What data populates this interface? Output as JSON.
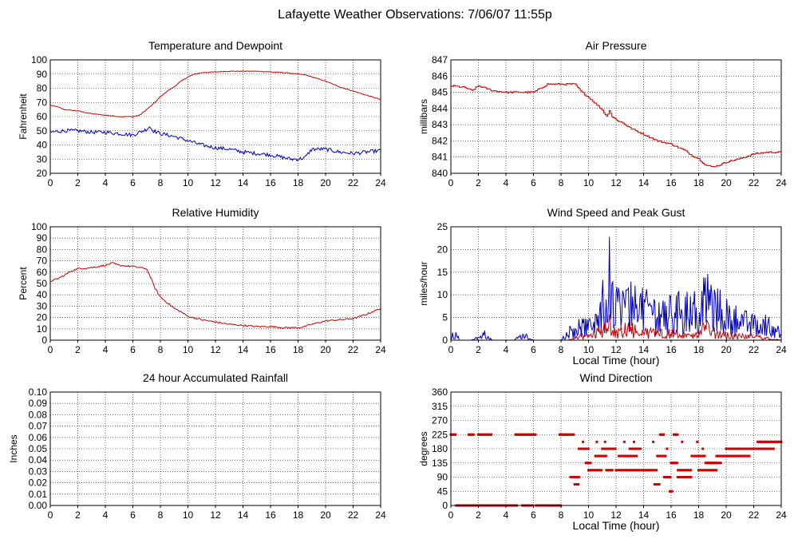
{
  "page_title": "Lafayette Weather Observations: 7/06/07 11:55p",
  "colors": {
    "red": "#cc0000",
    "blue": "#0000bb",
    "grid": "#000000",
    "frame": "#000000"
  },
  "chart_data": [
    {
      "id": "temp",
      "type": "line",
      "title": "Temperature and Dewpoint",
      "ylabel": "Fahrenheit",
      "xlabel": "",
      "xlim": [
        0,
        24
      ],
      "ylim": [
        20,
        100
      ],
      "xticks": [
        0,
        2,
        4,
        6,
        8,
        10,
        12,
        14,
        16,
        18,
        20,
        22,
        24
      ],
      "yticks": [
        20,
        30,
        40,
        50,
        60,
        70,
        80,
        90,
        100
      ],
      "series": [
        {
          "color": "red",
          "noise": 0.25,
          "x": [
            0,
            0.5,
            1,
            2,
            3,
            4,
            5,
            6,
            6.5,
            7,
            7.5,
            8,
            8.5,
            9,
            9.5,
            10,
            10.5,
            11,
            12,
            13,
            14,
            15,
            16,
            17,
            18,
            18.5,
            19,
            20,
            21,
            22,
            23,
            24
          ],
          "y": [
            68,
            67,
            65,
            64,
            62,
            61,
            60,
            60,
            61,
            65,
            69,
            74,
            78,
            81,
            85,
            88,
            90,
            91,
            91.5,
            92,
            92,
            92,
            91.5,
            91,
            90,
            89.5,
            88,
            85,
            81,
            78,
            75,
            72
          ]
        },
        {
          "color": "blue",
          "noise": 1.3,
          "x": [
            0,
            1,
            2,
            3,
            4,
            5,
            6,
            6.5,
            7,
            7.2,
            7.5,
            8,
            9,
            10,
            11,
            12,
            13,
            14,
            15,
            16,
            17,
            17.5,
            18,
            18.5,
            19,
            20,
            21,
            22,
            23,
            24
          ],
          "y": [
            49,
            50,
            50,
            49,
            49,
            48,
            47,
            49,
            51,
            53,
            50,
            48,
            46,
            43,
            40,
            38,
            37,
            35,
            34,
            33,
            31,
            30,
            30,
            31,
            37,
            37,
            35,
            34,
            35,
            36
          ]
        }
      ]
    },
    {
      "id": "pressure",
      "type": "line",
      "title": "Air Pressure",
      "ylabel": "millibars",
      "xlabel": "",
      "xlim": [
        0,
        24
      ],
      "ylim": [
        840,
        847
      ],
      "xticks": [
        0,
        2,
        4,
        6,
        8,
        10,
        12,
        14,
        16,
        18,
        20,
        22,
        24
      ],
      "yticks": [
        840,
        841,
        842,
        843,
        844,
        845,
        846,
        847
      ],
      "series": [
        {
          "color": "red",
          "step": 0.1,
          "noise": 0.05,
          "x": [
            0,
            1,
            1.5,
            2,
            3,
            4,
            6,
            7,
            8,
            9,
            9.5,
            10,
            10.5,
            11,
            11.3,
            11.5,
            11.7,
            12,
            12.5,
            13,
            14,
            15,
            16,
            17,
            17.5,
            18,
            18.5,
            19,
            19.5,
            20,
            21,
            22,
            23,
            24
          ],
          "y": [
            845.4,
            845.3,
            845.1,
            845.4,
            845.1,
            845.0,
            845.0,
            845.5,
            845.5,
            845.5,
            845.0,
            844.7,
            844.3,
            843.9,
            843.5,
            843.9,
            843.5,
            843.3,
            843.1,
            842.8,
            842.4,
            842.0,
            841.8,
            841.4,
            841.1,
            840.9,
            840.5,
            840.4,
            840.5,
            840.7,
            840.9,
            841.2,
            841.3,
            841.3
          ]
        }
      ]
    },
    {
      "id": "humidity",
      "type": "line",
      "title": "Relative Humidity",
      "ylabel": "Percent",
      "xlabel": "",
      "xlim": [
        0,
        24
      ],
      "ylim": [
        0,
        100
      ],
      "xticks": [
        0,
        2,
        4,
        6,
        8,
        10,
        12,
        14,
        16,
        18,
        20,
        22,
        24
      ],
      "yticks": [
        0,
        10,
        20,
        30,
        40,
        50,
        60,
        70,
        80,
        90,
        100
      ],
      "series": [
        {
          "color": "red",
          "noise": 0.7,
          "x": [
            0,
            0.5,
            1,
            1.5,
            2,
            3,
            4,
            4.5,
            5,
            6,
            6.5,
            7,
            7.3,
            7.6,
            8,
            8.5,
            9,
            9.5,
            10,
            11,
            12,
            13,
            14,
            15,
            16,
            17,
            18,
            18.5,
            19,
            20,
            21,
            22,
            23,
            24
          ],
          "y": [
            52,
            54,
            57,
            61,
            63,
            64,
            66,
            68,
            66,
            65,
            64,
            63,
            55,
            46,
            38,
            33,
            28,
            25,
            21,
            18,
            16,
            14,
            13,
            12,
            12,
            11,
            11,
            12,
            14,
            17,
            18,
            19,
            23,
            28
          ]
        }
      ]
    },
    {
      "id": "wind",
      "type": "line",
      "title": "Wind Speed and Peak Gust",
      "ylabel": "miles/hour",
      "xlabel": "Local Time (hour)",
      "xlim": [
        0,
        24
      ],
      "ylim": [
        0,
        25
      ],
      "xticks": [
        0,
        2,
        4,
        6,
        8,
        10,
        12,
        14,
        16,
        18,
        20,
        22,
        24
      ],
      "yticks": [
        0,
        5,
        10,
        15,
        20,
        25
      ],
      "series": [
        {
          "color": "blue",
          "spiky": true,
          "step": 0.06,
          "x": [
            0,
            0.2,
            0.4,
            0.6,
            0.8,
            1.5,
            2.2,
            2.4,
            2.6,
            3,
            4.6,
            5,
            5.5,
            6,
            8,
            8.5,
            9,
            9.5,
            10,
            10.5,
            11,
            11.4,
            11.5,
            11.7,
            12,
            13,
            14,
            15,
            16,
            17,
            18,
            18.5,
            19,
            20,
            21,
            22,
            23,
            23.5,
            24
          ],
          "y": [
            0,
            2,
            2,
            0,
            0,
            0,
            1,
            2,
            1,
            0,
            0,
            1,
            1,
            0,
            0,
            2,
            3,
            4,
            3,
            5,
            9,
            11,
            21,
            10,
            9,
            9,
            8,
            7,
            7,
            8,
            8,
            12,
            9,
            7,
            5,
            4,
            4,
            3,
            2
          ]
        },
        {
          "color": "red",
          "spiky": true,
          "step": 0.06,
          "x": [
            0,
            8.5,
            9,
            9.5,
            10,
            10.5,
            11,
            11.5,
            12,
            13,
            14,
            15,
            16,
            17,
            18,
            18.5,
            19,
            20,
            21,
            22,
            23,
            24
          ],
          "y": [
            0,
            0,
            0.5,
            1,
            1,
            2,
            2,
            4,
            2,
            3,
            2,
            2,
            2,
            1,
            2,
            4,
            2,
            1.5,
            1,
            1,
            0.5,
            0
          ]
        }
      ]
    },
    {
      "id": "rain",
      "type": "line",
      "title": "24 hour Accumulated Rainfall",
      "ylabel": "Inches",
      "xlabel": "",
      "xlim": [
        0,
        24
      ],
      "ylim": [
        0,
        0.1
      ],
      "xticks": [
        0,
        2,
        4,
        6,
        8,
        10,
        12,
        14,
        16,
        18,
        20,
        22,
        24
      ],
      "yticks": [
        0.0,
        0.01,
        0.02,
        0.03,
        0.04,
        0.05,
        0.06,
        0.07,
        0.08,
        0.09,
        0.1
      ],
      "ytick_labels": [
        "0.00",
        "0.01",
        "0.02",
        "0.03",
        "0.04",
        "0.05",
        "0.06",
        "0.07",
        "0.08",
        "0.09",
        "0.10"
      ],
      "series": [
        {
          "color": "red",
          "x": [
            0,
            24
          ],
          "y": [
            0,
            0
          ]
        }
      ]
    },
    {
      "id": "direction",
      "type": "scatter",
      "title": "Wind Direction",
      "ylabel": "degrees",
      "xlabel": "Local Time (hour)",
      "xlim": [
        0,
        24
      ],
      "ylim": [
        0,
        360
      ],
      "xticks": [
        0,
        2,
        4,
        6,
        8,
        10,
        12,
        14,
        16,
        18,
        20,
        22,
        24
      ],
      "yticks": [
        0,
        45,
        90,
        135,
        180,
        225,
        270,
        315,
        360
      ],
      "series": [
        {
          "color": "red",
          "segments": [
            [
              0.0,
              0.4,
              225
            ],
            [
              0.4,
              3.0,
              0
            ],
            [
              1.3,
              1.7,
              225
            ],
            [
              2.0,
              3.0,
              225
            ],
            [
              3.0,
              4.8,
              0
            ],
            [
              4.7,
              6.2,
              225
            ],
            [
              5.2,
              6.0,
              0
            ],
            [
              6.2,
              8.0,
              0
            ],
            [
              7.9,
              9.0,
              225
            ],
            [
              8.7,
              9.3,
              90
            ],
            [
              9.0,
              9.3,
              67
            ],
            [
              9.3,
              10.0,
              180
            ],
            [
              9.8,
              10.2,
              135
            ],
            [
              10.0,
              11.0,
              112
            ],
            [
              10.5,
              11.3,
              157
            ],
            [
              11.0,
              12.0,
              180
            ],
            [
              11.3,
              11.8,
              112
            ],
            [
              12.0,
              14.0,
              112
            ],
            [
              12.2,
              13.5,
              157
            ],
            [
              13.0,
              13.8,
              180
            ],
            [
              14.0,
              15.0,
              112
            ],
            [
              14.8,
              15.2,
              67
            ],
            [
              15.0,
              15.6,
              157
            ],
            [
              15.2,
              15.5,
              225
            ],
            [
              15.5,
              16.0,
              90
            ],
            [
              15.9,
              16.1,
              45
            ],
            [
              16.0,
              16.5,
              135
            ],
            [
              16.2,
              16.5,
              225
            ],
            [
              16.5,
              17.5,
              90
            ],
            [
              16.5,
              17.5,
              112
            ],
            [
              17.5,
              18.5,
              157
            ],
            [
              18.0,
              19.3,
              112
            ],
            [
              18.5,
              19.5,
              135
            ],
            [
              19.3,
              21.7,
              157
            ],
            [
              20.0,
              22.0,
              180
            ],
            [
              21.5,
              22.5,
              180
            ],
            [
              22.5,
              23.5,
              180
            ],
            [
              22.3,
              24.0,
              202
            ]
          ],
          "sparse": [
            [
              9.6,
              202
            ],
            [
              11.2,
              202
            ],
            [
              12.6,
              202
            ],
            [
              13.3,
              202
            ],
            [
              14.7,
              202
            ],
            [
              16.8,
              202
            ],
            [
              17.9,
              202
            ],
            [
              19.6,
              135
            ],
            [
              10.6,
              202
            ],
            [
              15.7,
              180
            ],
            [
              18.3,
              180
            ]
          ]
        }
      ]
    }
  ]
}
